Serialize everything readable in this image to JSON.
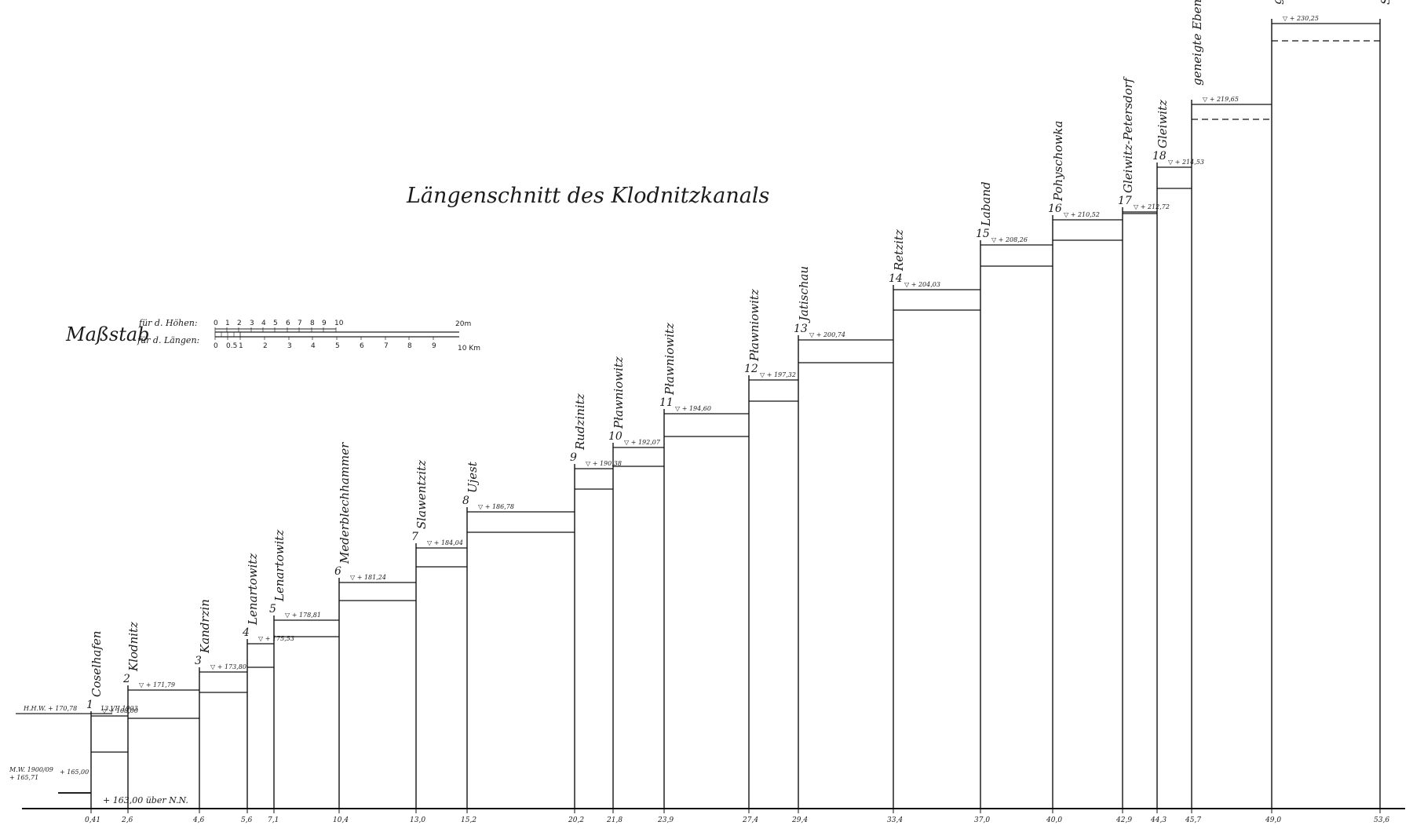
{
  "title": "Längenschnitt des Klodnitzkanals",
  "scale": {
    "label": "Maßstab",
    "heights_label": "für d. Höhen:",
    "lengths_label": "für d. Längen:",
    "height_ticks": [
      "0",
      "1",
      "2",
      "3",
      "4",
      "5",
      "6",
      "7",
      "8",
      "9",
      "10"
    ],
    "height_unit": "20m",
    "length_ticks": [
      "0",
      "0.5",
      "1",
      "2",
      "3",
      "4",
      "5",
      "6",
      "7",
      "8",
      "9"
    ],
    "length_unit": "10 Km"
  },
  "base_line": {
    "hhw_label": "H.H.W. + 170,78",
    "hhw_date": "13.VII.1903",
    "mw_label": "M.W. 1900/09",
    "mw_value": "+ 165,71",
    "lower_water": "+ 165,00",
    "datum_label": "+ 163,00 über N.N."
  },
  "locks": [
    {
      "num": "1",
      "name": "Coselhafen",
      "km": "0,41",
      "level": "+ 168,00"
    },
    {
      "num": "2",
      "name": "Klodnitz",
      "km": "2,6",
      "level": "+ 171,79"
    },
    {
      "num": "3",
      "name": "Kandrzin",
      "km": "4,6",
      "level": "+ 173,80"
    },
    {
      "num": "4",
      "name": "Lenartowitz",
      "km": "5,6",
      "level": "+ 175,53"
    },
    {
      "num": "5",
      "name": "Lenartowitz",
      "km": "7,1",
      "level": "+ 178,81"
    },
    {
      "num": "6",
      "name": "Mederblechhammer",
      "km": "10,4",
      "level": "+ 181,24"
    },
    {
      "num": "7",
      "name": "Slawentzitz",
      "km": "13,0",
      "level": "+ 184,04"
    },
    {
      "num": "8",
      "name": "Ujest",
      "km": "15,2",
      "level": "+ 186,78"
    },
    {
      "num": "9",
      "name": "Rudzinitz",
      "km": "20,2",
      "level": "+ 190,38"
    },
    {
      "num": "10",
      "name": "Pławniowitz",
      "km": "21,8",
      "level": "+ 192,07"
    },
    {
      "num": "11",
      "name": "Pławniowitz",
      "km": "23,9",
      "level": "+ 194,60"
    },
    {
      "num": "12",
      "name": "Pławniowitz",
      "km": "27,4",
      "level": "+ 197,32"
    },
    {
      "num": "13",
      "name": "Jatischau",
      "km": "29,4",
      "level": "+ 200,74"
    },
    {
      "num": "14",
      "name": "Retzitz",
      "km": "33,4",
      "level": "+ 204,03"
    },
    {
      "num": "15",
      "name": "Laband",
      "km": "37,0",
      "level": "+ 208,26"
    },
    {
      "num": "16",
      "name": "Pohyschowka",
      "km": "40,0",
      "level": "+ 210,52"
    },
    {
      "num": "17",
      "name": "Gleiwitz-Petersdorf",
      "km": "42,9",
      "level": "+ 212,72"
    },
    {
      "num": "18",
      "name": "Gleiwitz",
      "km": "44,3",
      "level": "+ 214,53"
    },
    {
      "num": "",
      "name": "geneigte Ebene",
      "km": "45,7",
      "level": "+ 219,65"
    },
    {
      "num": "",
      "name": "geneigte Ebene",
      "km": "49,0",
      "level": "+ 230,25"
    },
    {
      "num": "",
      "name": "Stollenmundloch Zabrze Hindenburg.",
      "km": "53,6",
      "level": ""
    }
  ]
}
